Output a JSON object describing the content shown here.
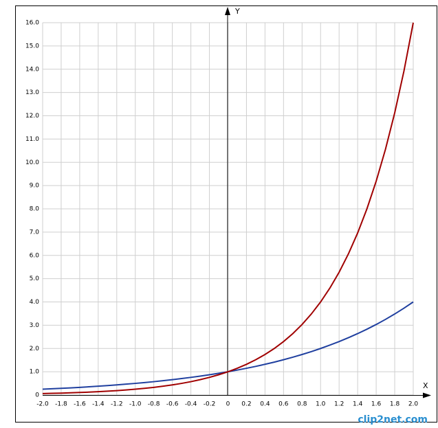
{
  "chart_data": {
    "type": "line",
    "x_label": "X",
    "y_label": "Y",
    "watermark": "clip2net.com",
    "x": [
      -2,
      -1.9,
      -1.8,
      -1.7,
      -1.6,
      -1.5,
      -1.4,
      -1.3,
      -1.2,
      -1.1,
      -1,
      -0.9,
      -0.8,
      -0.7,
      -0.6,
      -0.5,
      -0.4,
      -0.3,
      -0.2,
      -0.1,
      0,
      0.1,
      0.2,
      0.3,
      0.4,
      0.5,
      0.6,
      0.7,
      0.8,
      0.9,
      1,
      1.1,
      1.2,
      1.3,
      1.4,
      1.5,
      1.6,
      1.7,
      1.8,
      1.9,
      2
    ],
    "series": [
      {
        "color": "#1f3f9f",
        "values": [
          0.25,
          0.268,
          0.287,
          0.308,
          0.33,
          0.354,
          0.379,
          0.406,
          0.435,
          0.467,
          0.5,
          0.536,
          0.574,
          0.616,
          0.66,
          0.707,
          0.758,
          0.812,
          0.871,
          0.933,
          1,
          1.072,
          1.149,
          1.231,
          1.32,
          1.414,
          1.516,
          1.625,
          1.741,
          1.866,
          2,
          2.144,
          2.297,
          2.462,
          2.639,
          2.828,
          3.031,
          3.249,
          3.482,
          3.732,
          4
        ]
      },
      {
        "color": "#a00000",
        "values": [
          0.0625,
          0.072,
          0.082,
          0.095,
          0.109,
          0.125,
          0.144,
          0.165,
          0.189,
          0.218,
          0.25,
          0.287,
          0.33,
          0.379,
          0.435,
          0.5,
          0.574,
          0.66,
          0.758,
          0.871,
          1,
          1.149,
          1.32,
          1.516,
          1.741,
          2,
          2.297,
          2.639,
          3.031,
          3.482,
          4,
          4.595,
          5.278,
          6.063,
          6.964,
          8,
          9.19,
          10.556,
          12.126,
          13.929,
          16
        ]
      }
    ],
    "xlim": [
      -2,
      2
    ],
    "ylim": [
      0,
      16
    ],
    "xticks": [
      {
        "value": -2,
        "label": "-2.0"
      },
      -1.8,
      -1.6,
      -1.4,
      -1.2,
      {
        "value": -1,
        "label": "-1.0"
      },
      -0.8,
      -0.6,
      -0.4,
      -0.2,
      0,
      0.2,
      0.4,
      0.6,
      0.8,
      {
        "value": 1,
        "label": "1.0"
      },
      1.2,
      1.4,
      1.6,
      1.8,
      {
        "value": 2,
        "label": "2.0"
      }
    ],
    "yticks": [
      0,
      {
        "value": 1,
        "label": "1.0"
      },
      {
        "value": 2,
        "label": "2.0"
      },
      {
        "value": 3,
        "label": "3.0"
      },
      {
        "value": 4,
        "label": "4.0"
      },
      {
        "value": 5,
        "label": "5.0"
      },
      {
        "value": 6,
        "label": "6.0"
      },
      {
        "value": 7,
        "label": "7.0"
      },
      {
        "value": 8,
        "label": "8.0"
      },
      {
        "value": 9,
        "label": "9.0"
      },
      {
        "value": 10,
        "label": "10.0"
      },
      {
        "value": 11,
        "label": "11.0"
      },
      {
        "value": 12,
        "label": "12.0"
      },
      {
        "value": 13,
        "label": "13.0"
      },
      {
        "value": 14,
        "label": "14.0"
      },
      {
        "value": 15,
        "label": "15.0"
      },
      {
        "value": 16,
        "label": "16.0"
      }
    ],
    "grid": true
  }
}
